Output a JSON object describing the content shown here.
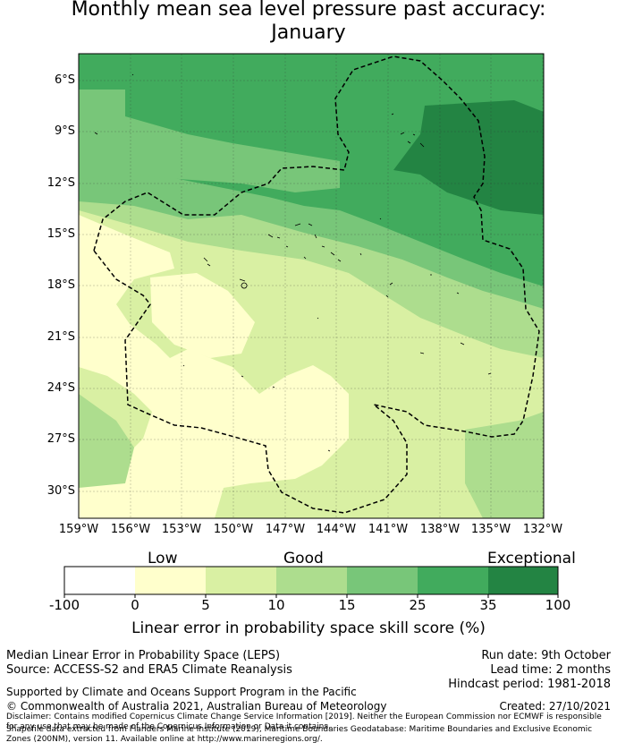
{
  "title": {
    "line1": "Monthly mean sea level pressure past accuracy:",
    "line2": "January"
  },
  "map": {
    "y_axis_labels": [
      "6°S",
      "9°S",
      "12°S",
      "15°S",
      "18°S",
      "21°S",
      "24°S",
      "27°S",
      "30°S"
    ],
    "x_axis_labels": [
      "159°W",
      "156°W",
      "153°W",
      "150°W",
      "147°W",
      "144°W",
      "141°W",
      "138°W",
      "135°W",
      "132°W"
    ],
    "colors": {
      "lt0": "#ffffff",
      "c0_5": "#ffffcc",
      "c5_10": "#d9f0a3",
      "c10_15": "#addd8e",
      "c15_25": "#78c679",
      "c25_35": "#41ab5d",
      "c35_100": "#238443",
      "eez_boundary": "#000000"
    },
    "eez_boundary_style": "dashed"
  },
  "colorbar": {
    "categories": [
      "Low",
      "Good",
      "Exceptional"
    ],
    "ticks": [
      "-100",
      "0",
      "5",
      "10",
      "15",
      "25",
      "35",
      "100"
    ],
    "label": "Linear error in probability space skill score (%)"
  },
  "info": {
    "metric": "Median Linear Error in Probability Space (LEPS)",
    "source": "Source: ACCESS-S2 and ERA5 Climate Reanalysis",
    "run_date": "Run date: 9th October",
    "lead_time": "Lead time: 2 months",
    "hindcast": "Hindcast period: 1981-2018",
    "support": "Supported by Climate and Oceans Support Program in the Pacific",
    "copyright": "© Commonwealth of Australia 2021, Australian Bureau of Meteorology",
    "created": "Created: 27/10/2021",
    "disclaimer1": "Disclaimer: Contains modified Copernicus Climate Change Service Information [2019]. Neither the European Commission nor ECMWF is responsible for any use that may be made of the Copernicus Information or Data it contains.",
    "disclaimer2": "Shapefile data extracted from Flanders Marine Institute (2019), Maritime Boundaries Geodatabase: Maritime Boundaries and Exclusive Economic Zones (200NM), version 11. Available online at http://www.marineregions.org/."
  }
}
